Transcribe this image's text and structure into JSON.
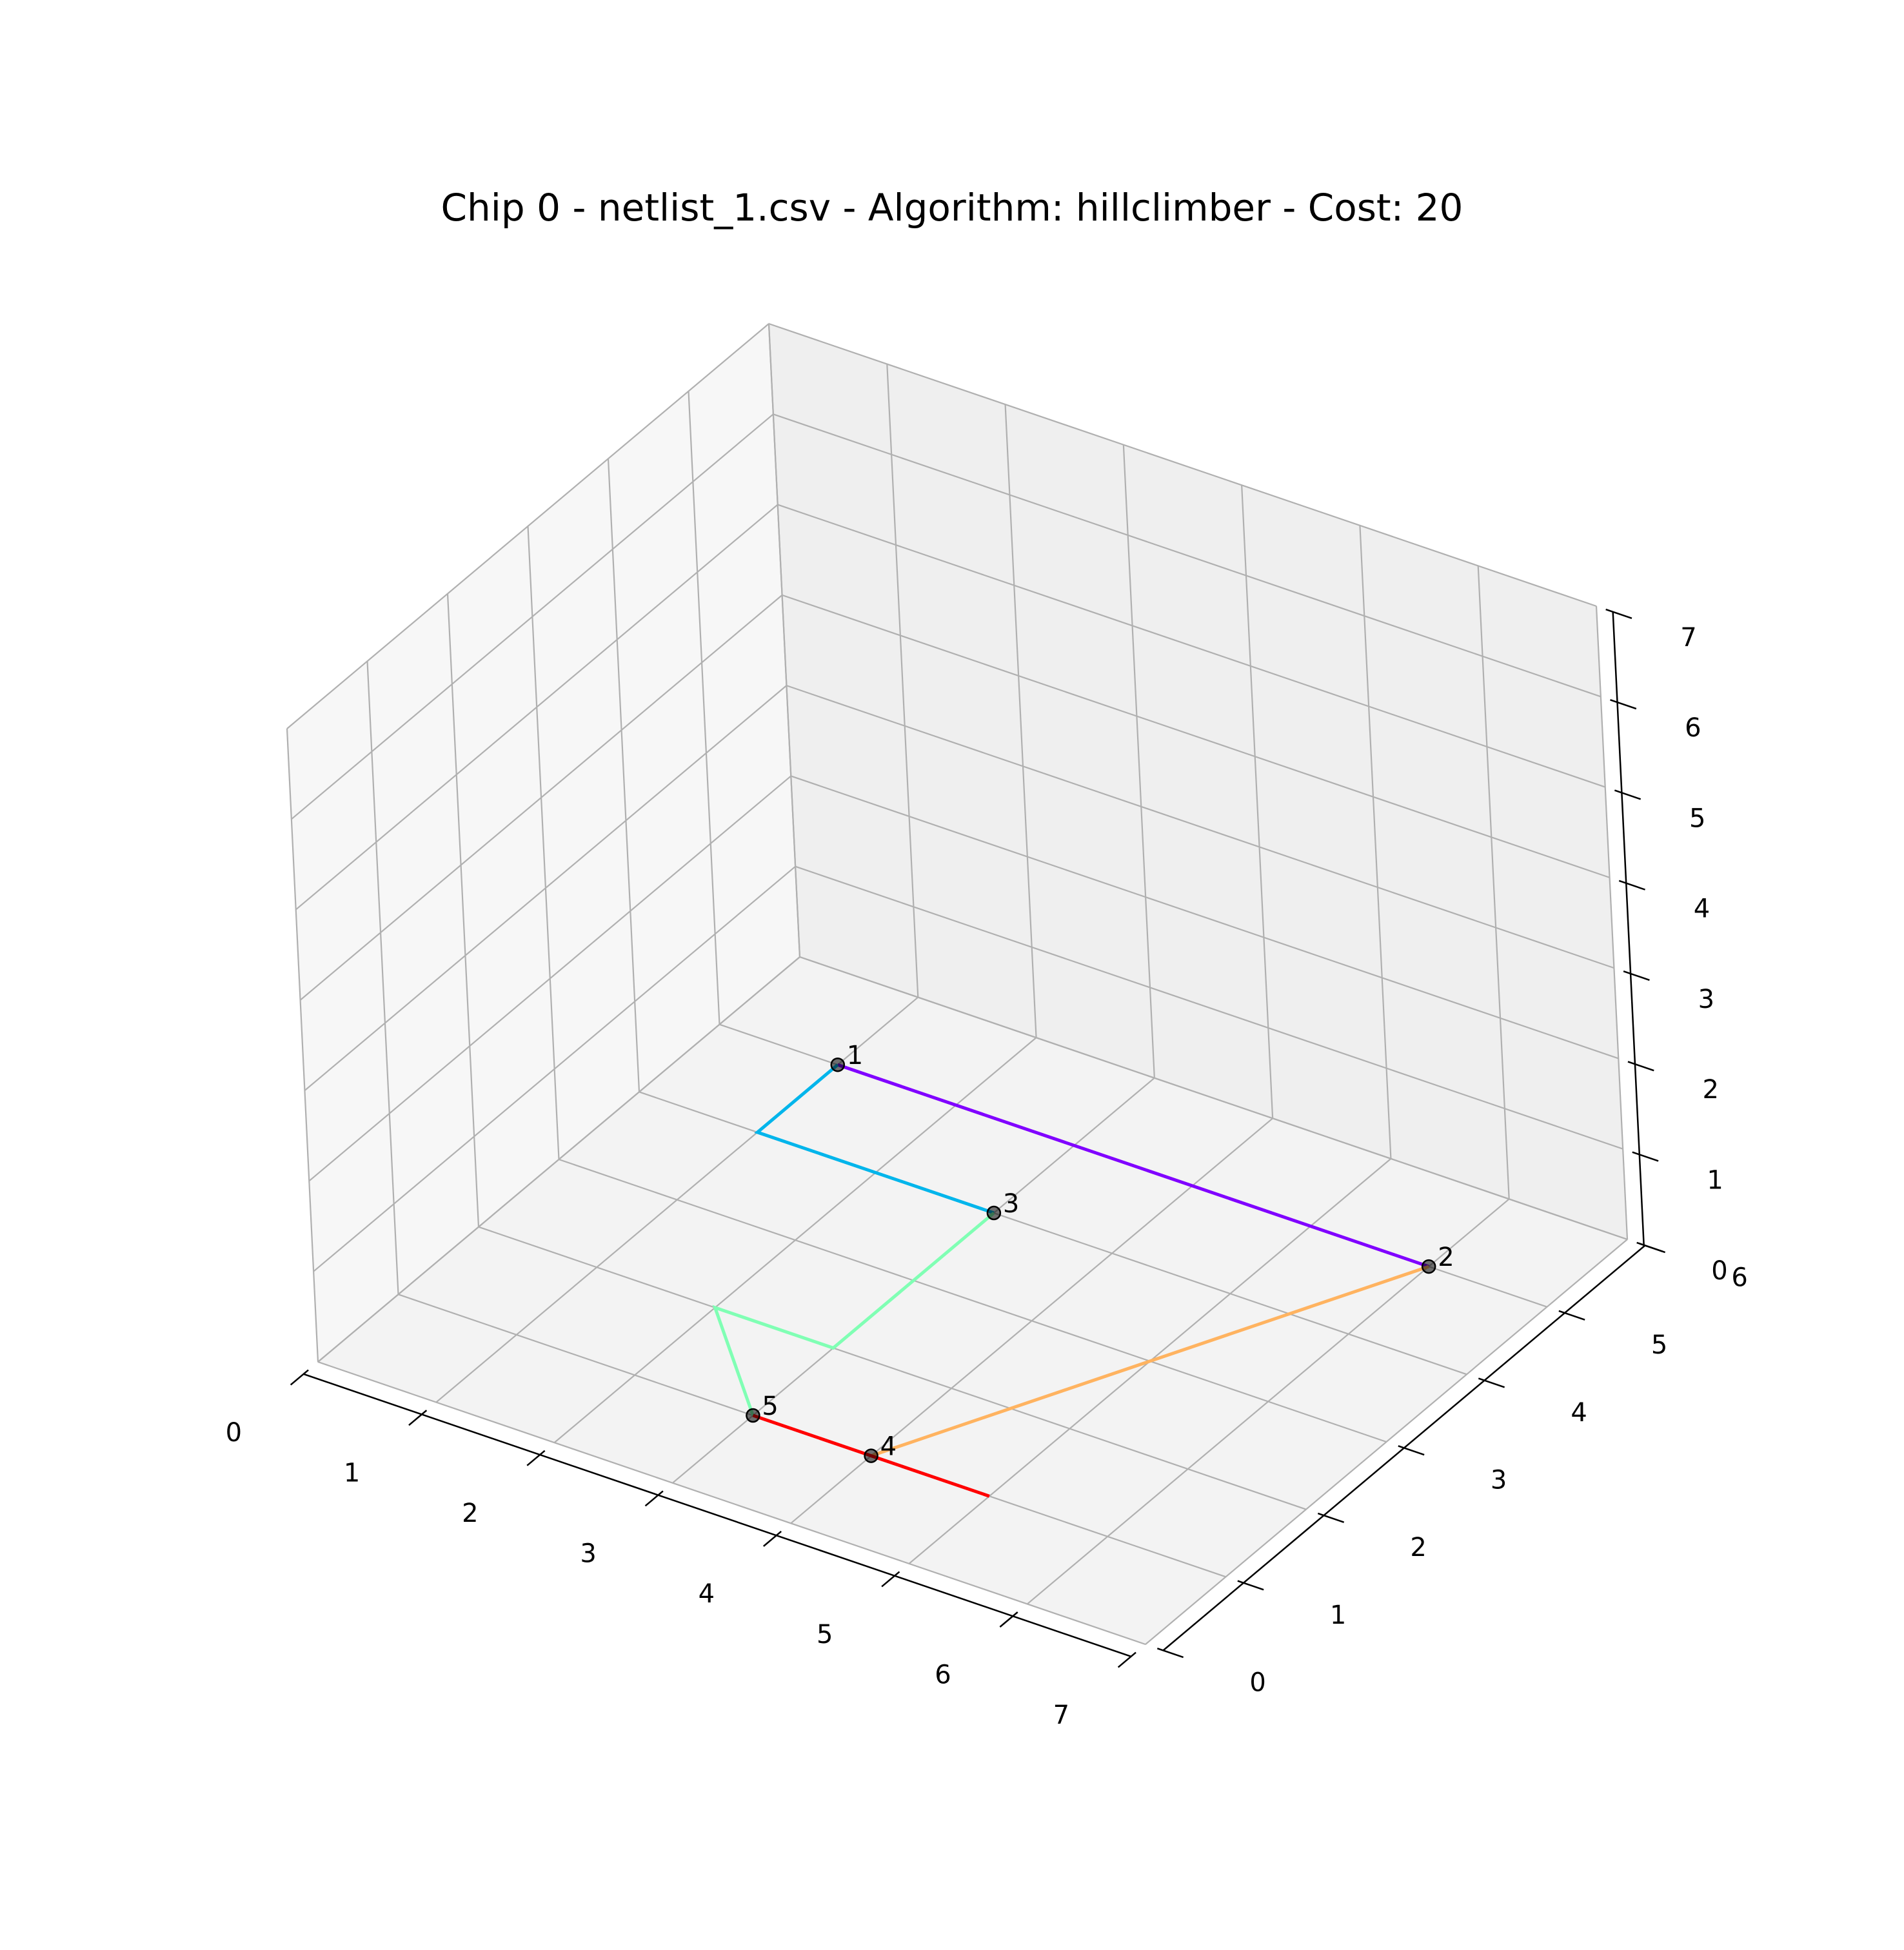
{
  "chart_data": {
    "type": "line3d",
    "title": "Chip 0 - netlist_1.csv - Algorithm: hillclimber - Cost: 20",
    "xlim": [
      0,
      7
    ],
    "ylim": [
      0,
      6
    ],
    "zlim": [
      0,
      7
    ],
    "x_ticks": [
      "0",
      "1",
      "2",
      "3",
      "4",
      "5",
      "6",
      "7"
    ],
    "y_ticks": [
      "0",
      "1",
      "2",
      "3",
      "4",
      "5",
      "6"
    ],
    "z_ticks": [
      "0",
      "1",
      "2",
      "3",
      "4",
      "5",
      "6",
      "7"
    ],
    "gates": [
      {
        "label": "1",
        "x": 1,
        "y": 5,
        "z": 0
      },
      {
        "label": "2",
        "x": 6,
        "y": 5,
        "z": 0
      },
      {
        "label": "3",
        "x": 3,
        "y": 4,
        "z": 0
      },
      {
        "label": "4",
        "x": 4,
        "y": 1,
        "z": 0
      },
      {
        "label": "5",
        "x": 3,
        "y": 1,
        "z": 0
      }
    ],
    "wires": [
      {
        "color": "#8000ff",
        "path": [
          [
            1,
            5,
            0
          ],
          [
            6,
            5,
            0
          ]
        ]
      },
      {
        "color": "#00b5eb",
        "path": [
          [
            1,
            5,
            0
          ],
          [
            1,
            4,
            0
          ],
          [
            3,
            4,
            0
          ]
        ]
      },
      {
        "color": "#80ffb4",
        "path": [
          [
            3,
            4,
            0
          ],
          [
            3,
            2,
            0
          ],
          [
            2,
            2,
            0
          ],
          [
            3,
            1,
            0
          ]
        ]
      },
      {
        "color": "#ffb360",
        "path": [
          [
            6,
            5,
            0
          ],
          [
            4,
            1,
            0
          ]
        ]
      },
      {
        "color": "#ff0000",
        "path": [
          [
            3,
            1,
            0
          ],
          [
            5,
            1,
            0
          ],
          [
            4,
            1,
            0
          ]
        ]
      }
    ]
  }
}
